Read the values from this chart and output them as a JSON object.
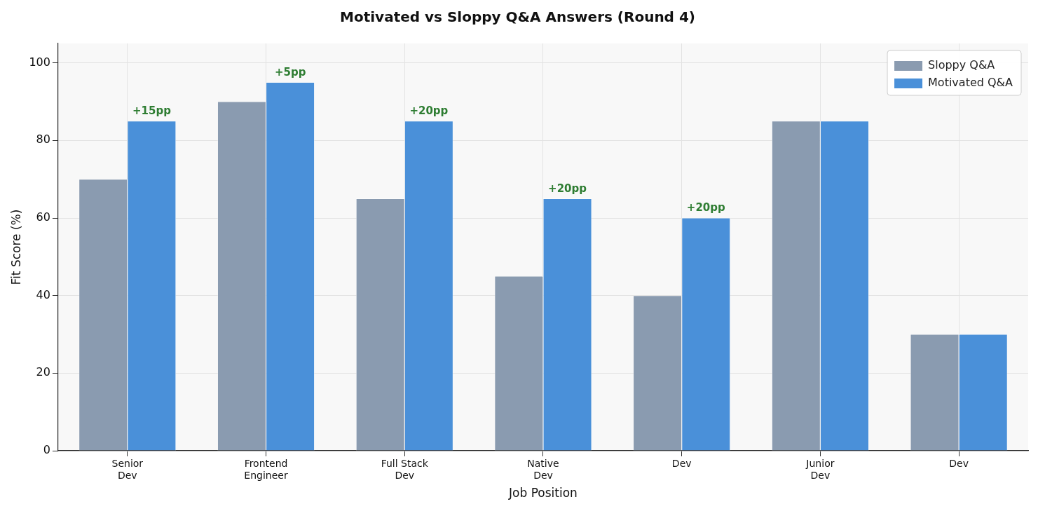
{
  "chart_data": {
    "type": "bar",
    "title": "Motivated vs Sloppy Q&A Answers (Round 4)",
    "xlabel": "Job Position",
    "ylabel": "Fit Score (%)",
    "categories": [
      "Senior Dev",
      "Frontend Engineer",
      "Full Stack Dev",
      "Native Dev",
      "Dev",
      "Junior Dev",
      "Dev"
    ],
    "series": [
      {
        "name": "Sloppy Q&A",
        "color": "#8a9bb0",
        "values": [
          70,
          90,
          65,
          45,
          40,
          85,
          30
        ]
      },
      {
        "name": "Motivated Q&A",
        "color": "#4a90d9",
        "values": [
          85,
          95,
          85,
          65,
          60,
          85,
          30
        ]
      }
    ],
    "ylim": [
      0,
      105
    ],
    "yticks": [
      0,
      20,
      40,
      60,
      80,
      100
    ],
    "grid": true,
    "legend": "top right",
    "annotations": [
      {
        "text": "+15pp",
        "x": "Senior Dev",
        "y": 85
      },
      {
        "text": "+5pp",
        "x": "Frontend Engineer",
        "y": 95
      },
      {
        "text": "+20pp",
        "x": "Full Stack Dev",
        "y": 85
      },
      {
        "text": "+20pp",
        "x": "Native Dev",
        "y": 65
      },
      {
        "text": "+20pp",
        "x": "Dev",
        "y": 60
      }
    ]
  }
}
